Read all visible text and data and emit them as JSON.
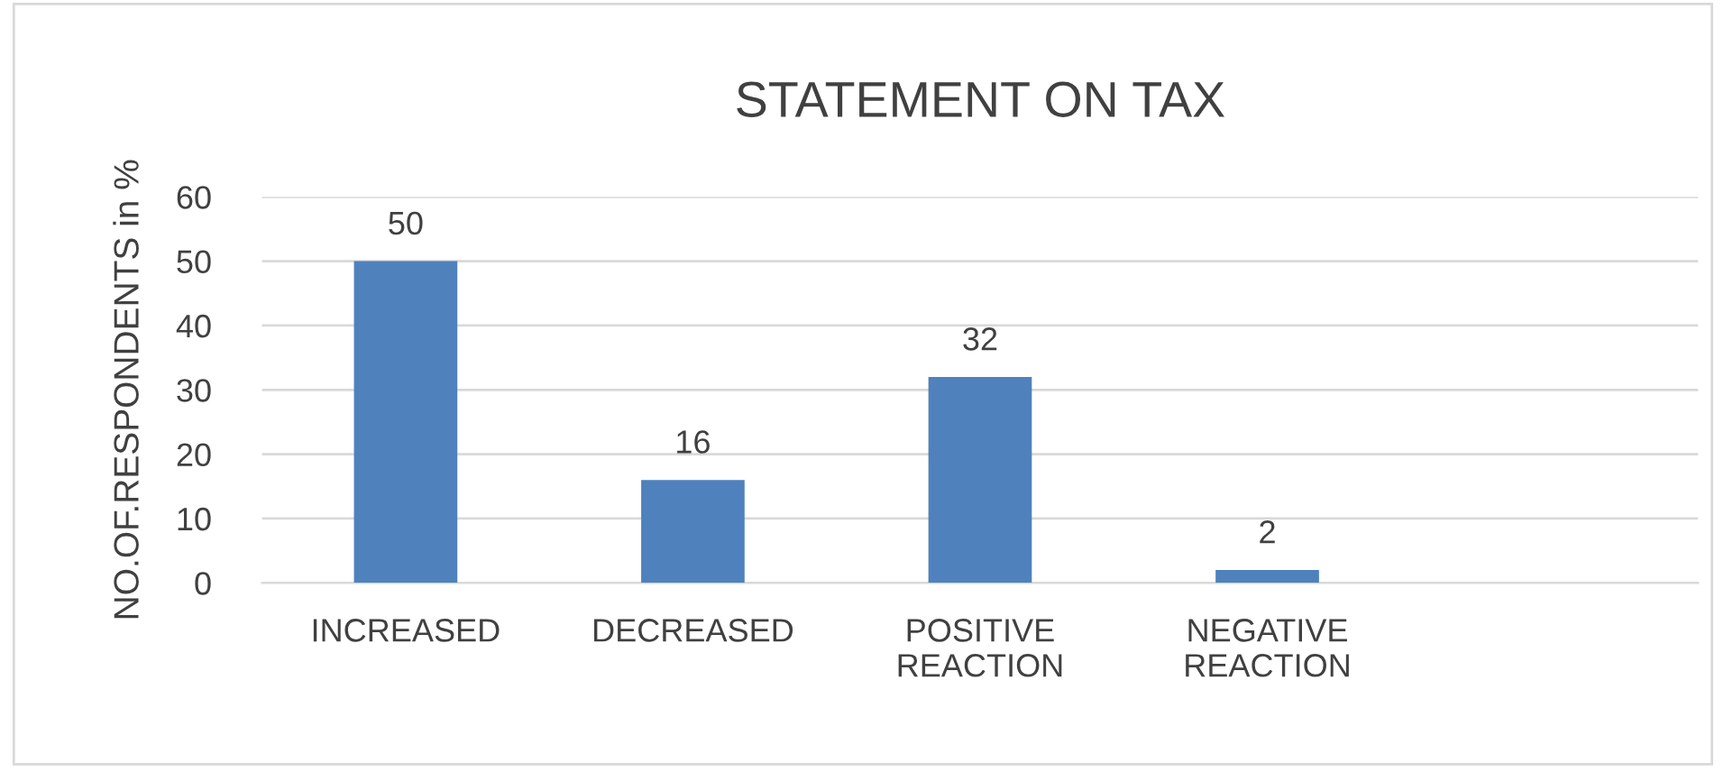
{
  "chart_data": {
    "type": "bar",
    "title": "STATEMENT ON TAX",
    "ylabel": "NO.OF.RESPONDENTS in %",
    "categories": [
      "INCREASED",
      "DECREASED",
      "POSITIVE REACTION",
      "NEGATIVE REACTION",
      null
    ],
    "values": [
      50,
      16,
      32,
      2,
      null
    ],
    "color": "#4f81bd",
    "ylim": [
      0,
      60
    ],
    "yticks": [
      0,
      10,
      20,
      30,
      40,
      50,
      60
    ],
    "grid": "y",
    "data_labels": true
  }
}
